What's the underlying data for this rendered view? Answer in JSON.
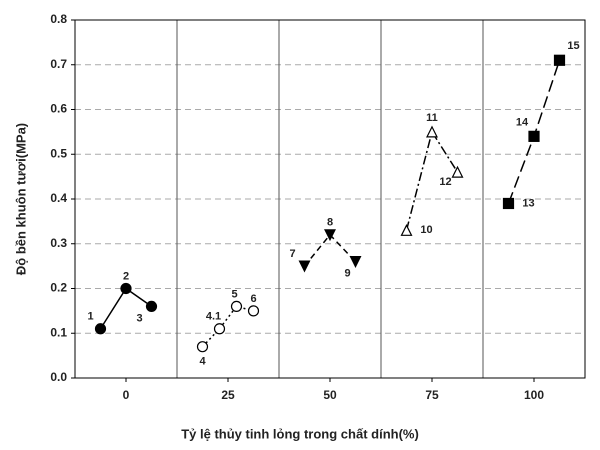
{
  "chart_data": {
    "type": "grouped-scatter",
    "x_label": "Tỷ lệ thủy tinh lỏng trong chất dính(%)",
    "y_label": "Độ bền khuôn tươi(MPa)",
    "categories": [
      "0",
      "25",
      "50",
      "75",
      "100"
    ],
    "series": [
      {
        "marker": "circle-filled",
        "line_style": "solid",
        "values": [
          0.11,
          0.2,
          0.16
        ],
        "point_labels": [
          "1",
          "2",
          "3"
        ]
      },
      {
        "marker": "circle-open",
        "line_style": "dotted",
        "values": [
          0.07,
          0.11,
          0.16,
          0.15
        ],
        "point_labels": [
          "4",
          "4.1",
          "5",
          "6"
        ]
      },
      {
        "marker": "triangle-down-filled",
        "line_style": "dashed",
        "values": [
          0.25,
          0.32,
          0.26
        ],
        "point_labels": [
          "7",
          "8",
          "9"
        ]
      },
      {
        "marker": "triangle-up-open",
        "line_style": "dash-dot",
        "values": [
          0.33,
          0.55,
          0.46
        ],
        "point_labels": [
          "10",
          "11",
          "12"
        ]
      },
      {
        "marker": "square-filled",
        "line_style": "long-dash",
        "values": [
          0.39,
          0.54,
          0.71
        ],
        "point_labels": [
          "13",
          "14",
          "15"
        ]
      }
    ],
    "color": "#000000",
    "ylim": [
      0,
      0.8
    ],
    "yticks": [
      {
        "value": 0,
        "label": "0.0"
      },
      0.1,
      0.2,
      0.3,
      0.4,
      0.5,
      0.6,
      0.7,
      0.8
    ],
    "grid": true
  }
}
